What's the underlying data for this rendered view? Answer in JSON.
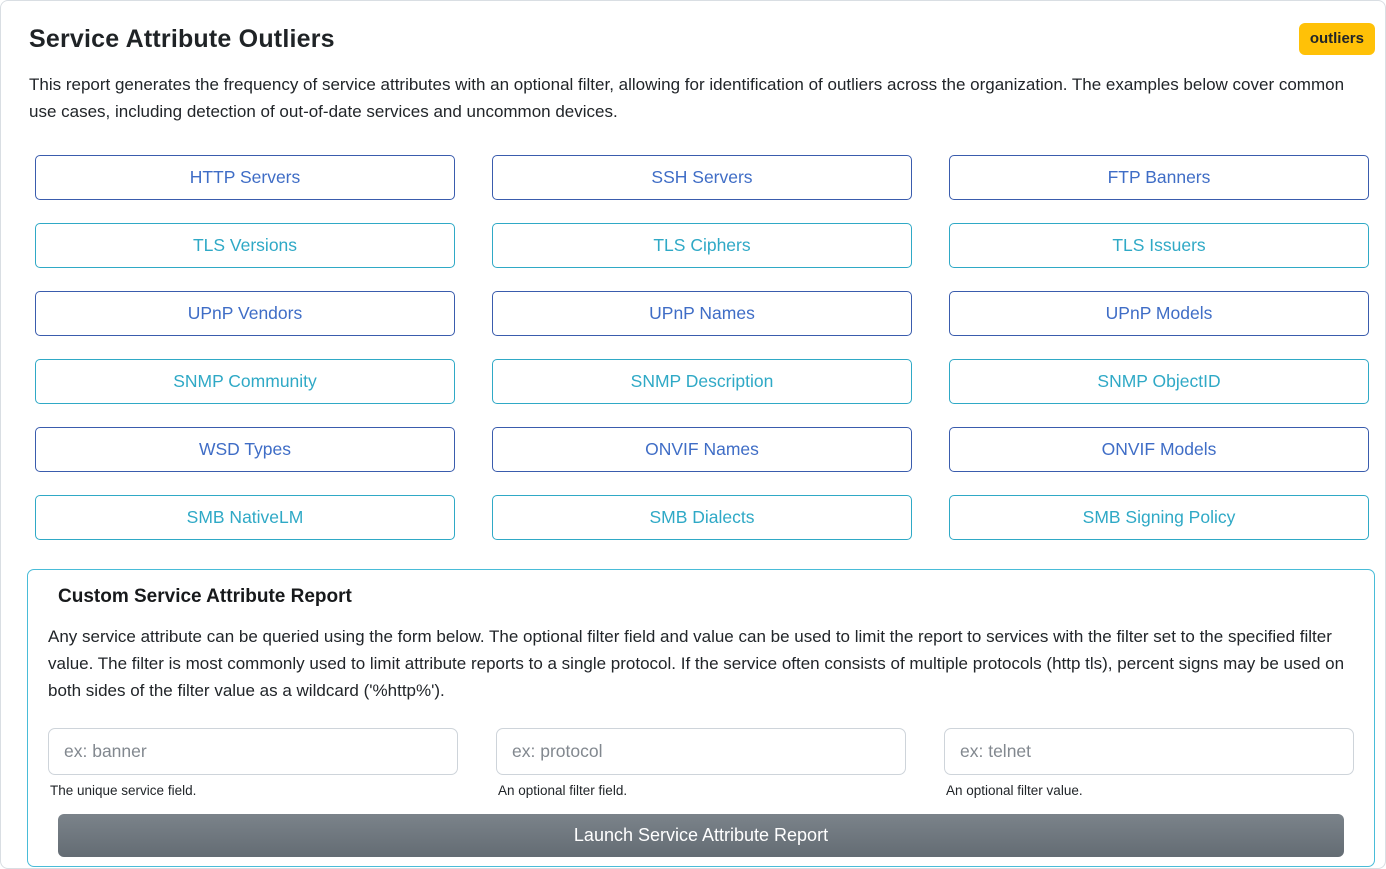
{
  "page": {
    "title": "Service Attribute Outliers",
    "badge": "outliers",
    "description": "This report generates the frequency of service attributes with an optional filter, allowing for identification of outliers across the organization. The examples below cover common use cases, including detection of out-of-date services and uncommon devices."
  },
  "report_buttons": [
    {
      "label": "HTTP Servers",
      "variant": "primary"
    },
    {
      "label": "SSH Servers",
      "variant": "primary"
    },
    {
      "label": "FTP Banners",
      "variant": "primary"
    },
    {
      "label": "TLS Versions",
      "variant": "info"
    },
    {
      "label": "TLS Ciphers",
      "variant": "info"
    },
    {
      "label": "TLS Issuers",
      "variant": "info"
    },
    {
      "label": "UPnP Vendors",
      "variant": "primary"
    },
    {
      "label": "UPnP Names",
      "variant": "primary"
    },
    {
      "label": "UPnP Models",
      "variant": "primary"
    },
    {
      "label": "SNMP Community",
      "variant": "info"
    },
    {
      "label": "SNMP Description",
      "variant": "info"
    },
    {
      "label": "SNMP ObjectID",
      "variant": "info"
    },
    {
      "label": "WSD Types",
      "variant": "primary"
    },
    {
      "label": "ONVIF Names",
      "variant": "primary"
    },
    {
      "label": "ONVIF Models",
      "variant": "primary"
    },
    {
      "label": "SMB NativeLM",
      "variant": "info"
    },
    {
      "label": "SMB Dialects",
      "variant": "info"
    },
    {
      "label": "SMB Signing Policy",
      "variant": "info"
    }
  ],
  "custom_report": {
    "title": "Custom Service Attribute Report",
    "description": "Any service attribute can be queried using the form below. The optional filter field and value can be used to limit the report to services with the filter set to the specified filter value. The filter is most commonly used to limit attribute reports to a single protocol. If the service often consists of multiple protocols (http tls), percent signs may be used on both sides of the filter value as a wildcard ('%http%').",
    "fields": [
      {
        "placeholder": "ex: banner",
        "help": "The unique service field."
      },
      {
        "placeholder": "ex: protocol",
        "help": "An optional filter field."
      },
      {
        "placeholder": "ex: telnet",
        "help": "An optional filter value."
      }
    ],
    "submit_label": "Launch Service Attribute Report"
  },
  "colors": {
    "primary_blue": "#3f6dc6",
    "primary_border": "#3a5cad",
    "info_teal": "#2fa9c6",
    "badge_yellow": "#ffc107",
    "badge_text": "#212529",
    "submit_gray": "#6c757d",
    "section_border": "#49bcd8"
  }
}
